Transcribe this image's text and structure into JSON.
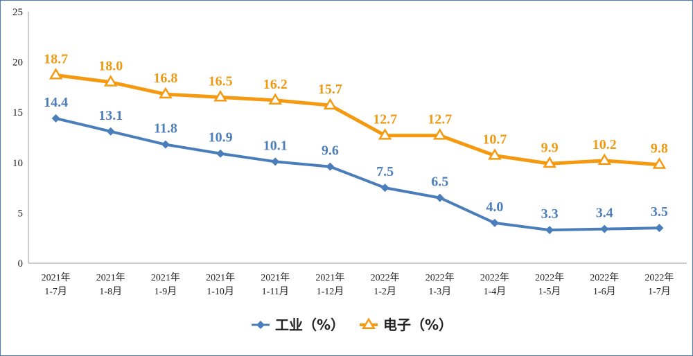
{
  "chart_data": {
    "type": "line",
    "categories": [
      [
        "2021年",
        "1-7月"
      ],
      [
        "2021年",
        "1-8月"
      ],
      [
        "2021年",
        "1-9月"
      ],
      [
        "2021年",
        "1-10月"
      ],
      [
        "2021年",
        "1-11月"
      ],
      [
        "2021年",
        "1-12月"
      ],
      [
        "2022年",
        "1-2月"
      ],
      [
        "2022年",
        "1-3月"
      ],
      [
        "2022年",
        "1-4月"
      ],
      [
        "2022年",
        "1-5月"
      ],
      [
        "2022年",
        "1-6月"
      ],
      [
        "2022年",
        "1-7月"
      ]
    ],
    "series": [
      {
        "name": "工业（%）",
        "marker": "diamond",
        "color": "#4a7ebb",
        "values": [
          14.4,
          13.1,
          11.8,
          10.9,
          10.1,
          9.6,
          7.5,
          6.5,
          4.0,
          3.3,
          3.4,
          3.5
        ],
        "labels": [
          "14.4",
          "13.1",
          "11.8",
          "10.9",
          "10.1",
          "9.6",
          "7.5",
          "6.5",
          "4.0",
          "3.3",
          "3.4",
          "3.5"
        ]
      },
      {
        "name": "电子（%）",
        "marker": "triangle",
        "color": "#f59a10",
        "values": [
          18.7,
          18.0,
          16.8,
          16.5,
          16.2,
          15.7,
          12.7,
          12.7,
          10.7,
          9.9,
          10.2,
          9.8
        ],
        "labels": [
          "18.7",
          "18.0",
          "16.8",
          "16.5",
          "16.2",
          "15.7",
          "12.7",
          "12.7",
          "10.7",
          "9.9",
          "10.2",
          "9.8"
        ]
      }
    ],
    "yticks": [
      "0",
      "5",
      "10",
      "15",
      "20",
      "25"
    ],
    "ylim": [
      0,
      25
    ],
    "grid": false,
    "legend_position": "bottom-center"
  }
}
